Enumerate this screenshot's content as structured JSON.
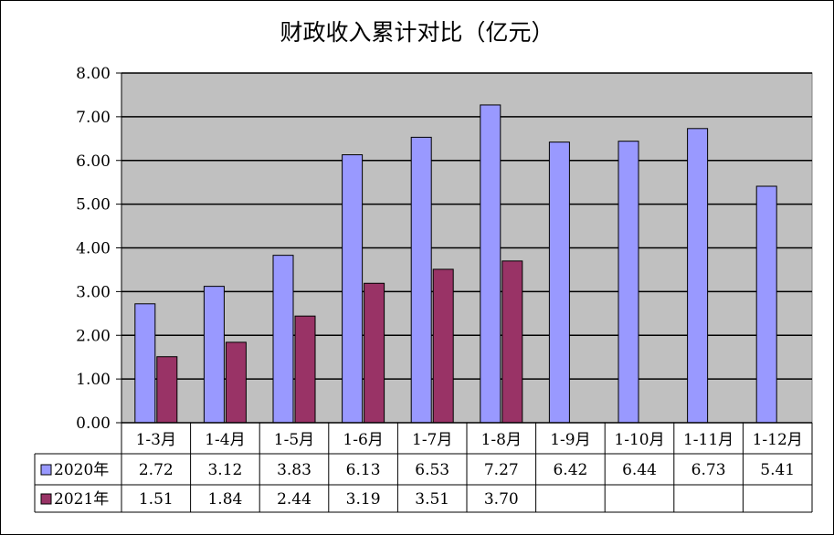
{
  "chart_data": {
    "type": "bar",
    "title": "财政收入累计对比（亿元）",
    "categories": [
      "1-3月",
      "1-4月",
      "1-5月",
      "1-6月",
      "1-7月",
      "1-8月",
      "1-9月",
      "1-10月",
      "1-11月",
      "1-12月"
    ],
    "series": [
      {
        "name": "2020年",
        "color": "#9999ff",
        "values": [
          2.72,
          3.12,
          3.83,
          6.13,
          6.53,
          7.27,
          6.42,
          6.44,
          6.73,
          5.41
        ],
        "labels": [
          "2.72",
          "3.12",
          "3.83",
          "6.13",
          "6.53",
          "7.27",
          "6.42",
          "6.44",
          "6.73",
          "5.41"
        ]
      },
      {
        "name": "2021年",
        "color": "#993366",
        "values": [
          1.51,
          1.84,
          2.44,
          3.19,
          3.51,
          3.7,
          null,
          null,
          null,
          null
        ],
        "labels": [
          "1.51",
          "1.84",
          "2.44",
          "3.19",
          "3.51",
          "3.70",
          "",
          "",
          "",
          ""
        ]
      }
    ],
    "y_ticks": [
      "0.00",
      "1.00",
      "2.00",
      "3.00",
      "4.00",
      "5.00",
      "6.00",
      "7.00",
      "8.00"
    ],
    "ylim": [
      0,
      8
    ],
    "grid": true,
    "plot_background": "#c0c0c0",
    "legend": "data-table",
    "xlabel": "",
    "ylabel": ""
  }
}
